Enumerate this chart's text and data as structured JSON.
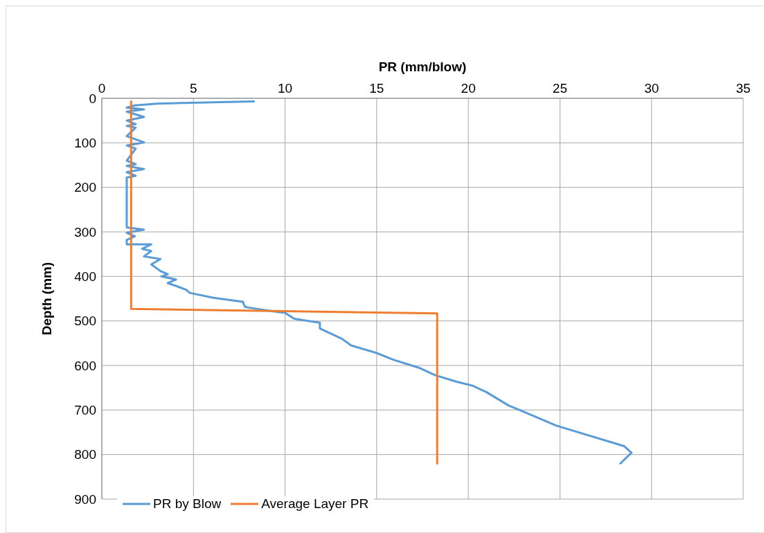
{
  "chart_data": {
    "type": "line",
    "xlabel": "PR (mm/blow)",
    "ylabel": "Depth (mm)",
    "xlim": [
      0,
      35
    ],
    "xticks": [
      0,
      5,
      10,
      15,
      20,
      25,
      30,
      35
    ],
    "ylim": [
      900,
      0
    ],
    "yticks": [
      0,
      100,
      200,
      300,
      400,
      500,
      600,
      700,
      800,
      900
    ],
    "grid": true,
    "legend": "bottom left",
    "line_style": "solid",
    "marker": "none",
    "series": [
      {
        "name": "PR by Blow",
        "color": "#5b9bd5",
        "x": [
          8.3,
          3,
          1.8,
          1.36,
          2.3,
          1.36,
          2.3,
          1.36,
          1.85,
          1.36,
          1.85,
          1.36,
          2.3,
          1.36,
          1.85,
          1.36,
          1.85,
          1.36,
          2.3,
          1.36,
          1.85,
          1.36,
          1.36,
          2.3,
          1.36,
          1.8,
          1.36,
          1.36,
          2.7,
          2.2,
          2.7,
          2.3,
          3.2,
          2.7,
          3.2,
          3.6,
          3.25,
          4.05,
          3.6,
          4.1,
          4.6,
          4.8,
          6.1,
          7.7,
          7.8,
          8.0,
          9.6,
          10.0,
          10.5,
          11.9,
          11.9,
          13.1,
          13.6,
          15.0,
          15.9,
          17.3,
          18.2,
          19.4,
          20.2,
          21,
          22.2,
          22.8,
          24.8,
          28.5,
          28.9,
          28.3
        ],
        "values": [
          7,
          12,
          16,
          21,
          25,
          30,
          42,
          50,
          58,
          62,
          66,
          85,
          99,
          106,
          113,
          140,
          148,
          152,
          159,
          166,
          174,
          178,
          290,
          295,
          302,
          310,
          318,
          328,
          328,
          338,
          343,
          355,
          361,
          373,
          388,
          395,
          400,
          407,
          415,
          422,
          430,
          437,
          448,
          457,
          468,
          470,
          480,
          482,
          495,
          504,
          517,
          540,
          555,
          572,
          587,
          605,
          622,
          637,
          645,
          660,
          690,
          700,
          735,
          781,
          796,
          820
        ]
      },
      {
        "name": "Average Layer PR",
        "color": "#ed7d31",
        "x": [
          1.6,
          1.6,
          18.3,
          18.3
        ],
        "values": [
          7,
          473,
          483,
          820
        ]
      }
    ]
  }
}
